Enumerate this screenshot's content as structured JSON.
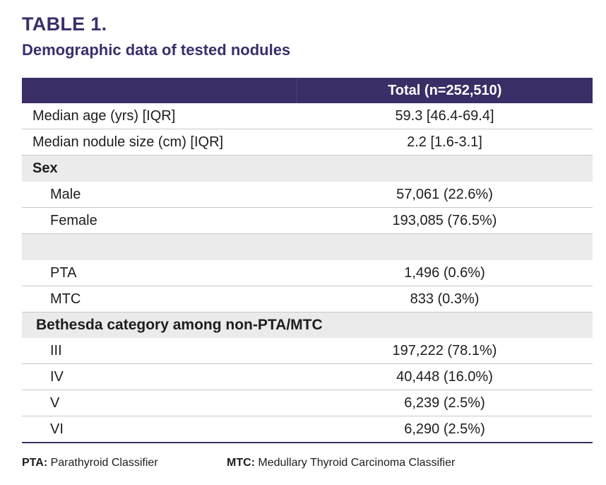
{
  "title": "TABLE 1.",
  "subtitle": "Demographic data of tested nodules",
  "table": {
    "header": {
      "col1": "",
      "col2": "Total (n=252,510)"
    },
    "rows": [
      {
        "label": "Median age (yrs) [IQR]",
        "value": "59.3 [46.4-69.4]"
      },
      {
        "label": "Median nodule size (cm) [IQR]",
        "value": "2.2 [1.6-3.1]"
      },
      {
        "label": "Sex",
        "value": ""
      },
      {
        "label": "Male",
        "value": "57,061 (22.6%)"
      },
      {
        "label": "Female",
        "value": "193,085 (76.5%)"
      },
      {
        "label": "",
        "value": ""
      },
      {
        "label": "PTA",
        "value": "1,496 (0.6%)"
      },
      {
        "label": "MTC",
        "value": "833 (0.3%)"
      },
      {
        "label": "Bethesda category among non-PTA/MTC",
        "value": ""
      },
      {
        "label": "III",
        "value": "197,222 (78.1%)"
      },
      {
        "label": "IV",
        "value": "40,448 (16.0%)"
      },
      {
        "label": "V",
        "value": "6,239 (2.5%)"
      },
      {
        "label": "VI",
        "value": "6,290 (2.5%)"
      }
    ]
  },
  "footnotes": [
    {
      "abbr": "PTA:",
      "text": " Parathyroid Classifier"
    },
    {
      "abbr": "MTC:",
      "text": " Medullary Thyroid Carcinoma Classifier"
    }
  ],
  "colors": {
    "accent": "#3b2e66",
    "section_bg": "#ebebeb"
  }
}
